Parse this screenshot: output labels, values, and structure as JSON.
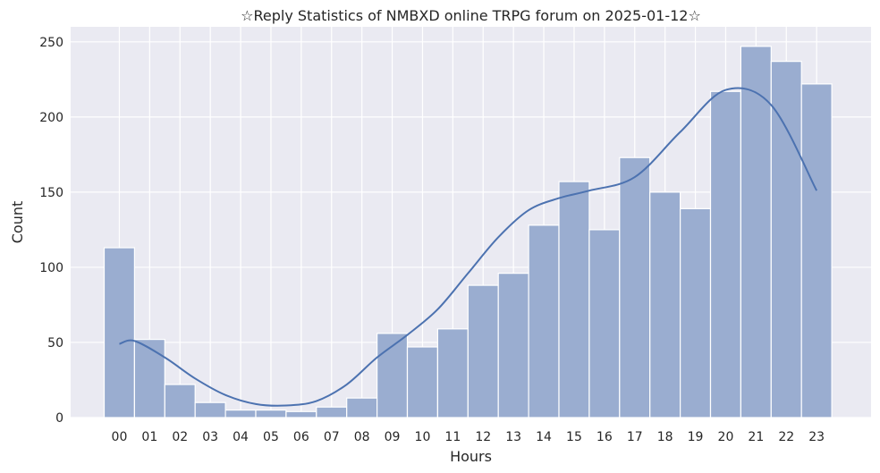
{
  "chart_data": {
    "type": "bar",
    "title": "☆Reply Statistics of NMBXD online TRPG forum on 2025-01-12☆",
    "xlabel": "Hours",
    "ylabel": "Count",
    "categories": [
      "00",
      "01",
      "02",
      "03",
      "04",
      "05",
      "06",
      "07",
      "08",
      "09",
      "10",
      "11",
      "12",
      "13",
      "14",
      "15",
      "16",
      "17",
      "18",
      "19",
      "20",
      "21",
      "22",
      "23"
    ],
    "values": [
      113,
      52,
      22,
      10,
      5,
      5,
      4,
      7,
      13,
      56,
      47,
      59,
      88,
      96,
      128,
      157,
      125,
      173,
      150,
      139,
      217,
      247,
      237,
      222
    ],
    "kde": [
      49,
      51,
      40,
      26,
      15,
      9,
      8,
      11,
      22,
      40,
      55,
      72,
      96,
      120,
      138,
      146,
      151,
      160,
      190,
      218,
      208,
      151
    ],
    "kde_x": [
      0,
      0.5,
      1.5,
      2.5,
      3.5,
      4.5,
      5.5,
      6.5,
      7.5,
      8.5,
      9.5,
      10.5,
      11.5,
      12.5,
      13.5,
      14.5,
      15.5,
      17,
      18.5,
      20,
      21.5,
      23
    ],
    "yticks": [
      0,
      50,
      100,
      150,
      200,
      250
    ],
    "ylim": [
      0,
      260
    ],
    "grid": true,
    "colors": {
      "bar_fill": "#9aadd0",
      "bar_edge": "#ffffff",
      "kde_line": "#4c72b0",
      "plot_bg": "#eaeaf2",
      "grid": "#ffffff"
    }
  }
}
